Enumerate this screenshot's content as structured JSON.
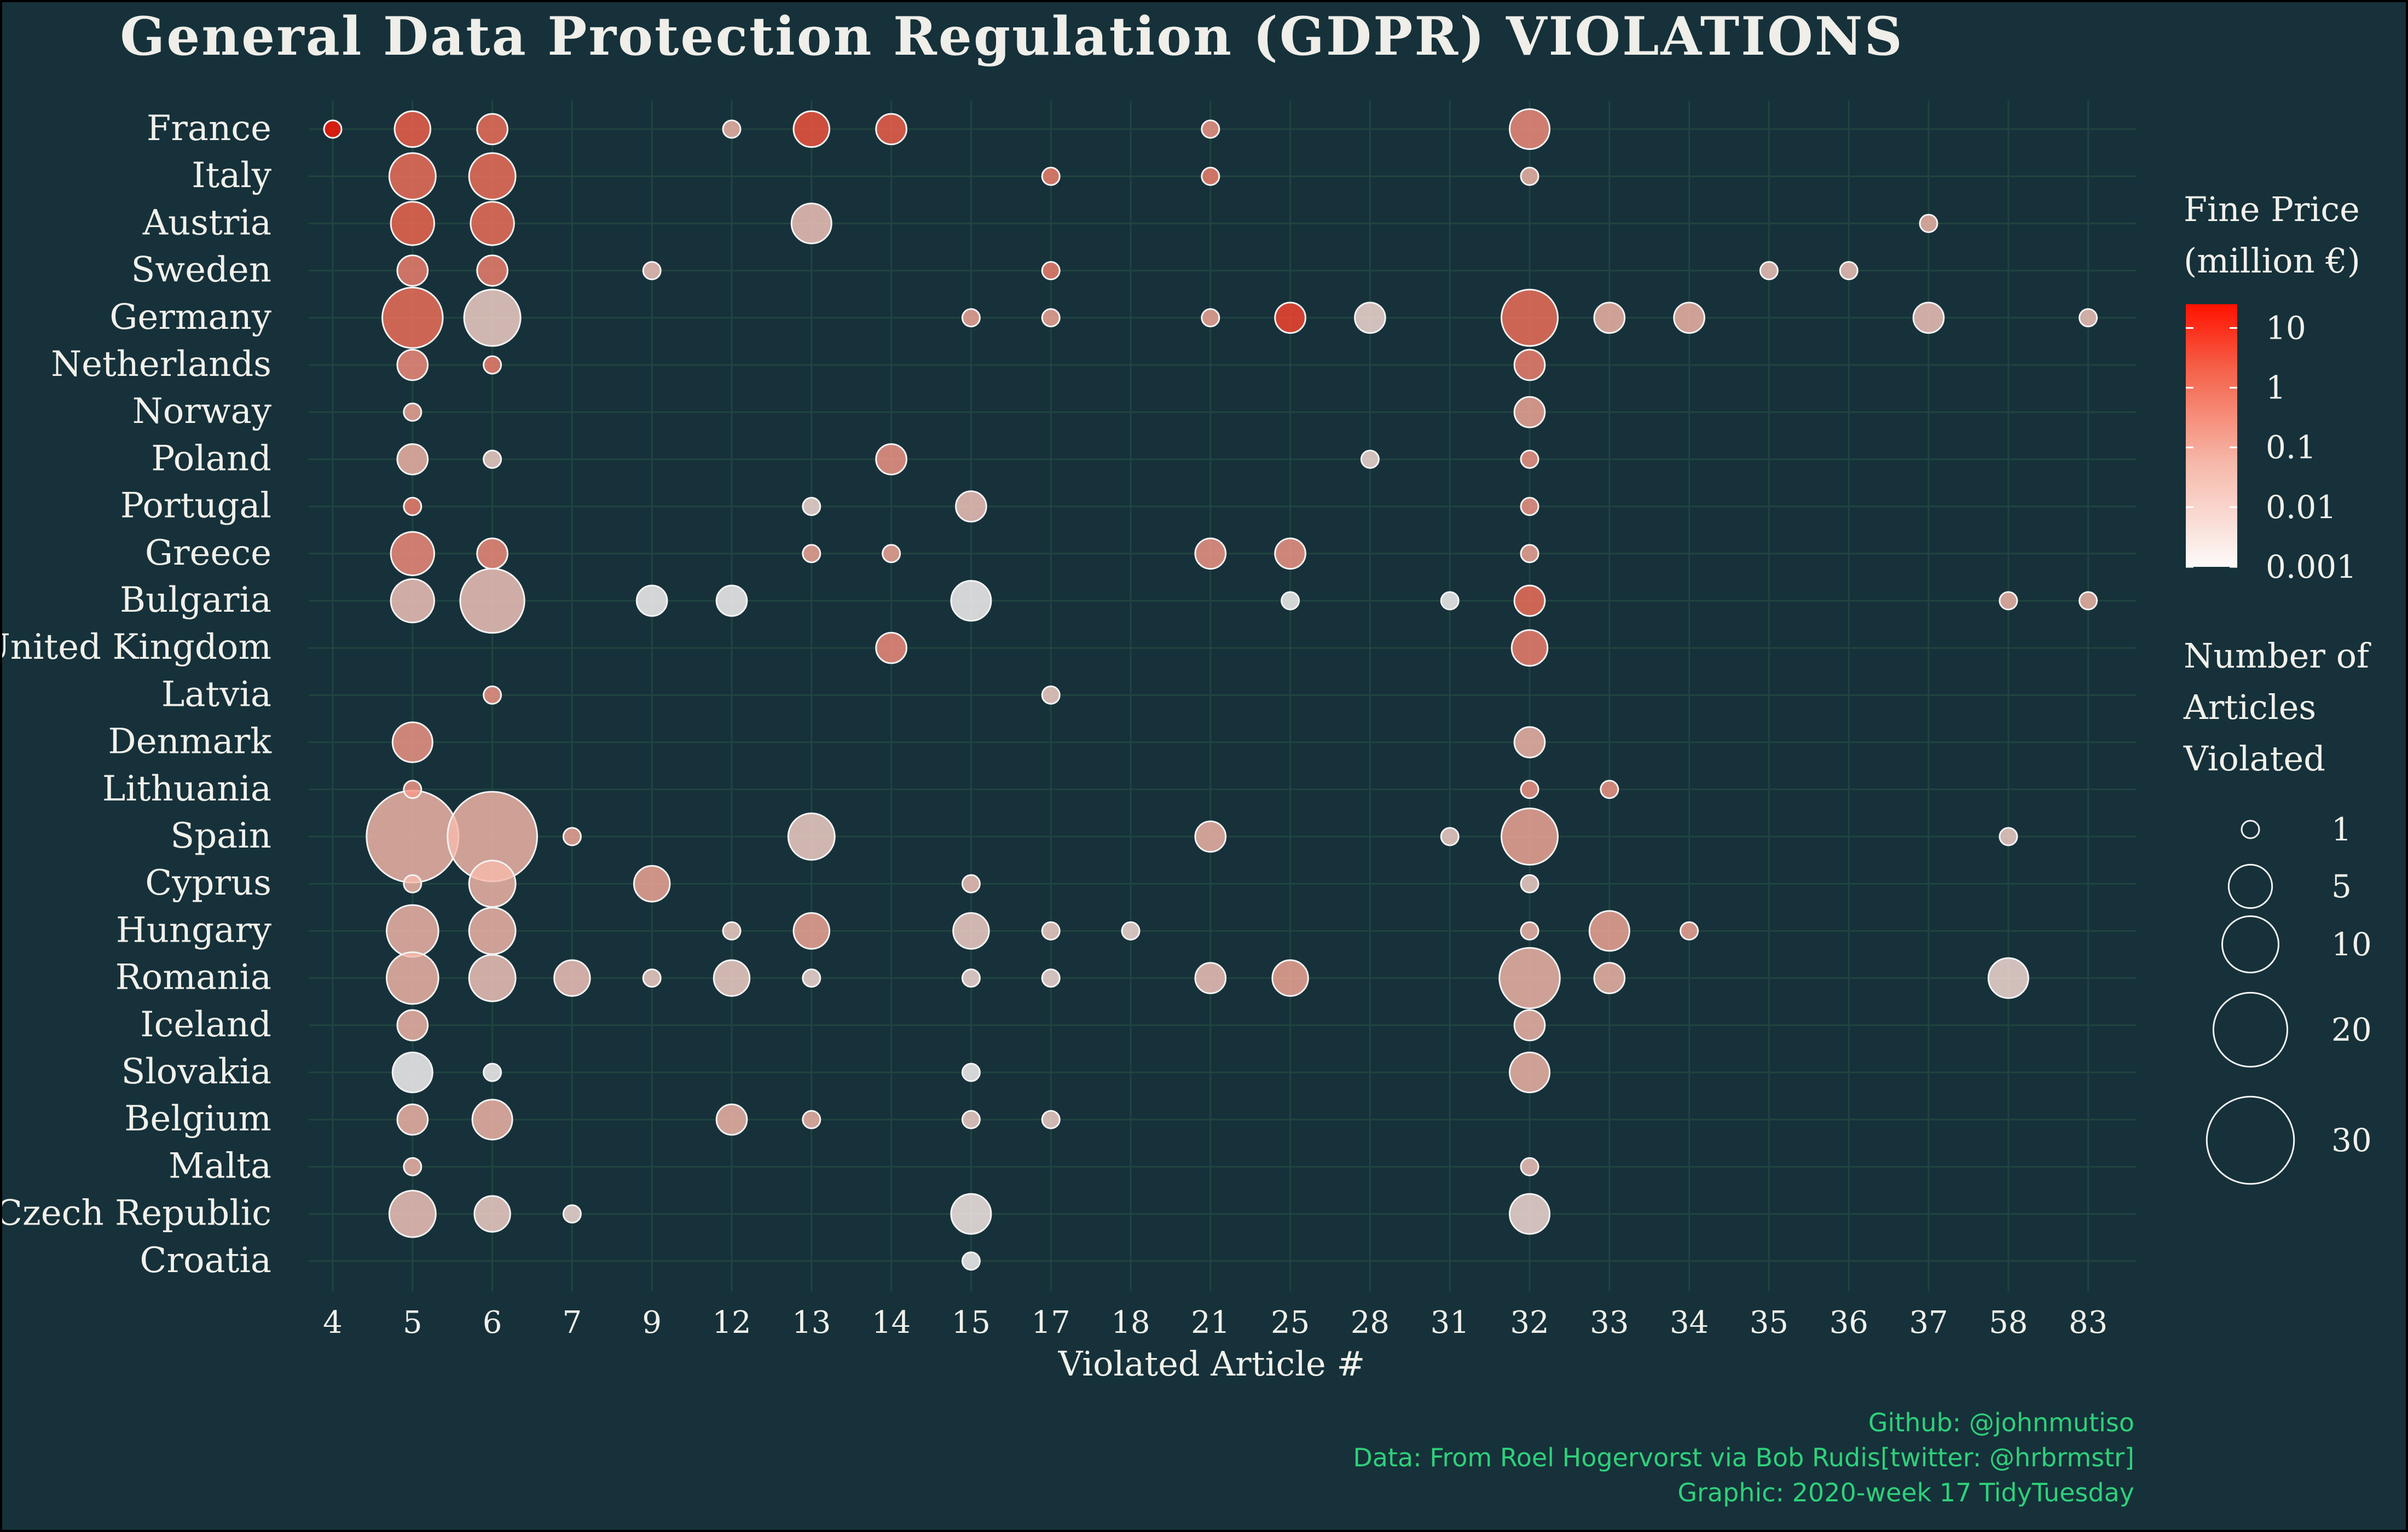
{
  "chart_data": {
    "type": "scatter",
    "title": "General Data Protection Regulation (GDPR) VIOLATIONS",
    "xlabel": "Violated Article #",
    "ylabel": "",
    "articles": [
      "4",
      "5",
      "6",
      "7",
      "9",
      "12",
      "13",
      "14",
      "15",
      "17",
      "18",
      "21",
      "25",
      "28",
      "31",
      "32",
      "33",
      "34",
      "35",
      "36",
      "37",
      "58",
      "83"
    ],
    "countries": [
      "France",
      "Italy",
      "Austria",
      "Sweden",
      "Germany",
      "Netherlands",
      "Norway",
      "Poland",
      "Portugal",
      "Greece",
      "Bulgaria",
      "United Kingdom",
      "Latvia",
      "Denmark",
      "Lithuania",
      "Spain",
      "Cyprus",
      "Hungary",
      "Romania",
      "Iceland",
      "Slovakia",
      "Belgium",
      "Malta",
      "Czech Republic",
      "Croatia"
    ],
    "points": [
      {
        "country": "France",
        "article": "4",
        "count": 1,
        "fine": 20
      },
      {
        "country": "France",
        "article": "5",
        "count": 3,
        "fine": 2
      },
      {
        "country": "France",
        "article": "6",
        "count": 2,
        "fine": 1
      },
      {
        "country": "France",
        "article": "12",
        "count": 1,
        "fine": 0.05
      },
      {
        "country": "France",
        "article": "13",
        "count": 3,
        "fine": 3
      },
      {
        "country": "France",
        "article": "14",
        "count": 2,
        "fine": 2
      },
      {
        "country": "France",
        "article": "21",
        "count": 1,
        "fine": 0.2
      },
      {
        "country": "France",
        "article": "32",
        "count": 4,
        "fine": 0.3
      },
      {
        "country": "Italy",
        "article": "5",
        "count": 6,
        "fine": 1
      },
      {
        "country": "Italy",
        "article": "6",
        "count": 6,
        "fine": 1
      },
      {
        "country": "Italy",
        "article": "17",
        "count": 1,
        "fine": 0.5
      },
      {
        "country": "Italy",
        "article": "21",
        "count": 1,
        "fine": 0.5
      },
      {
        "country": "Italy",
        "article": "32",
        "count": 1,
        "fine": 0.05
      },
      {
        "country": "Austria",
        "article": "5",
        "count": 5,
        "fine": 1.5
      },
      {
        "country": "Austria",
        "article": "6",
        "count": 5,
        "fine": 1
      },
      {
        "country": "Austria",
        "article": "13",
        "count": 4,
        "fine": 0.02
      },
      {
        "country": "Austria",
        "article": "37",
        "count": 1,
        "fine": 0.05
      },
      {
        "country": "Sweden",
        "article": "5",
        "count": 2,
        "fine": 0.5
      },
      {
        "country": "Sweden",
        "article": "6",
        "count": 2,
        "fine": 0.5
      },
      {
        "country": "Sweden",
        "article": "9",
        "count": 1,
        "fine": 0.02
      },
      {
        "country": "Sweden",
        "article": "17",
        "count": 1,
        "fine": 0.5
      },
      {
        "country": "Sweden",
        "article": "35",
        "count": 1,
        "fine": 0.02
      },
      {
        "country": "Sweden",
        "article": "36",
        "count": 1,
        "fine": 0.02
      },
      {
        "country": "Germany",
        "article": "5",
        "count": 12,
        "fine": 1
      },
      {
        "country": "Germany",
        "article": "6",
        "count": 10,
        "fine": 0.01
      },
      {
        "country": "Germany",
        "article": "15",
        "count": 1,
        "fine": 0.1
      },
      {
        "country": "Germany",
        "article": "17",
        "count": 1,
        "fine": 0.1
      },
      {
        "country": "Germany",
        "article": "21",
        "count": 1,
        "fine": 0.1
      },
      {
        "country": "Germany",
        "article": "25",
        "count": 2,
        "fine": 5
      },
      {
        "country": "Germany",
        "article": "28",
        "count": 2,
        "fine": 0.005
      },
      {
        "country": "Germany",
        "article": "32",
        "count": 10,
        "fine": 1
      },
      {
        "country": "Germany",
        "article": "33",
        "count": 2,
        "fine": 0.05
      },
      {
        "country": "Germany",
        "article": "34",
        "count": 2,
        "fine": 0.05
      },
      {
        "country": "Germany",
        "article": "37",
        "count": 2,
        "fine": 0.02
      },
      {
        "country": "Germany",
        "article": "83",
        "count": 1,
        "fine": 0.02
      },
      {
        "country": "Netherlands",
        "article": "5",
        "count": 2,
        "fine": 0.3
      },
      {
        "country": "Netherlands",
        "article": "6",
        "count": 1,
        "fine": 0.5
      },
      {
        "country": "Netherlands",
        "article": "32",
        "count": 2,
        "fine": 0.5
      },
      {
        "country": "Norway",
        "article": "5",
        "count": 1,
        "fine": 0.1
      },
      {
        "country": "Norway",
        "article": "32",
        "count": 2,
        "fine": 0.1
      },
      {
        "country": "Poland",
        "article": "5",
        "count": 2,
        "fine": 0.05
      },
      {
        "country": "Poland",
        "article": "6",
        "count": 1,
        "fine": 0.01
      },
      {
        "country": "Poland",
        "article": "14",
        "count": 2,
        "fine": 0.2
      },
      {
        "country": "Poland",
        "article": "28",
        "count": 1,
        "fine": 0.005
      },
      {
        "country": "Poland",
        "article": "32",
        "count": 1,
        "fine": 0.2
      },
      {
        "country": "Portugal",
        "article": "5",
        "count": 1,
        "fine": 0.5
      },
      {
        "country": "Portugal",
        "article": "13",
        "count": 1,
        "fine": 0.005
      },
      {
        "country": "Portugal",
        "article": "15",
        "count": 2,
        "fine": 0.02
      },
      {
        "country": "Portugal",
        "article": "32",
        "count": 1,
        "fine": 0.2
      },
      {
        "country": "Greece",
        "article": "5",
        "count": 5,
        "fine": 0.3
      },
      {
        "country": "Greece",
        "article": "6",
        "count": 2,
        "fine": 0.3
      },
      {
        "country": "Greece",
        "article": "13",
        "count": 1,
        "fine": 0.1
      },
      {
        "country": "Greece",
        "article": "14",
        "count": 1,
        "fine": 0.1
      },
      {
        "country": "Greece",
        "article": "21",
        "count": 2,
        "fine": 0.2
      },
      {
        "country": "Greece",
        "article": "25",
        "count": 2,
        "fine": 0.2
      },
      {
        "country": "Greece",
        "article": "32",
        "count": 1,
        "fine": 0.1
      },
      {
        "country": "Bulgaria",
        "article": "5",
        "count": 5,
        "fine": 0.02
      },
      {
        "country": "Bulgaria",
        "article": "6",
        "count": 14,
        "fine": 0.02
      },
      {
        "country": "Bulgaria",
        "article": "9",
        "count": 2,
        "fine": 0.001
      },
      {
        "country": "Bulgaria",
        "article": "12",
        "count": 2,
        "fine": 0.001
      },
      {
        "country": "Bulgaria",
        "article": "15",
        "count": 4,
        "fine": 0.001
      },
      {
        "country": "Bulgaria",
        "article": "25",
        "count": 1,
        "fine": 0.001
      },
      {
        "country": "Bulgaria",
        "article": "31",
        "count": 1,
        "fine": 0.001
      },
      {
        "country": "Bulgaria",
        "article": "32",
        "count": 2,
        "fine": 1
      },
      {
        "country": "Bulgaria",
        "article": "58",
        "count": 1,
        "fine": 0.05
      },
      {
        "country": "Bulgaria",
        "article": "83",
        "count": 1,
        "fine": 0.05
      },
      {
        "country": "United Kingdom",
        "article": "14",
        "count": 2,
        "fine": 0.3
      },
      {
        "country": "United Kingdom",
        "article": "32",
        "count": 3,
        "fine": 0.5
      },
      {
        "country": "Latvia",
        "article": "6",
        "count": 1,
        "fine": 0.2
      },
      {
        "country": "Latvia",
        "article": "17",
        "count": 1,
        "fine": 0.01
      },
      {
        "country": "Denmark",
        "article": "5",
        "count": 4,
        "fine": 0.2
      },
      {
        "country": "Denmark",
        "article": "32",
        "count": 2,
        "fine": 0.05
      },
      {
        "country": "Lithuania",
        "article": "5",
        "count": 1,
        "fine": 0.2
      },
      {
        "country": "Lithuania",
        "article": "32",
        "count": 1,
        "fine": 0.2
      },
      {
        "country": "Lithuania",
        "article": "33",
        "count": 1,
        "fine": 0.2
      },
      {
        "country": "Spain",
        "article": "5",
        "count": 34,
        "fine": 0.05
      },
      {
        "country": "Spain",
        "article": "6",
        "count": 32,
        "fine": 0.05
      },
      {
        "country": "Spain",
        "article": "7",
        "count": 1,
        "fine": 0.1
      },
      {
        "country": "Spain",
        "article": "13",
        "count": 6,
        "fine": 0.01
      },
      {
        "country": "Spain",
        "article": "21",
        "count": 2,
        "fine": 0.05
      },
      {
        "country": "Spain",
        "article": "31",
        "count": 1,
        "fine": 0.01
      },
      {
        "country": "Spain",
        "article": "32",
        "count": 10,
        "fine": 0.1
      },
      {
        "country": "Spain",
        "article": "58",
        "count": 1,
        "fine": 0.01
      },
      {
        "country": "Cyprus",
        "article": "5",
        "count": 1,
        "fine": 0.05
      },
      {
        "country": "Cyprus",
        "article": "6",
        "count": 6,
        "fine": 0.05
      },
      {
        "country": "Cyprus",
        "article": "9",
        "count": 3,
        "fine": 0.1
      },
      {
        "country": "Cyprus",
        "article": "15",
        "count": 1,
        "fine": 0.02
      },
      {
        "country": "Cyprus",
        "article": "32",
        "count": 1,
        "fine": 0.01
      },
      {
        "country": "Hungary",
        "article": "5",
        "count": 8,
        "fine": 0.05
      },
      {
        "country": "Hungary",
        "article": "6",
        "count": 6,
        "fine": 0.05
      },
      {
        "country": "Hungary",
        "article": "12",
        "count": 1,
        "fine": 0.01
      },
      {
        "country": "Hungary",
        "article": "13",
        "count": 3,
        "fine": 0.1
      },
      {
        "country": "Hungary",
        "article": "15",
        "count": 3,
        "fine": 0.01
      },
      {
        "country": "Hungary",
        "article": "17",
        "count": 1,
        "fine": 0.01
      },
      {
        "country": "Hungary",
        "article": "18",
        "count": 1,
        "fine": 0.005
      },
      {
        "country": "Hungary",
        "article": "32",
        "count": 1,
        "fine": 0.05
      },
      {
        "country": "Hungary",
        "article": "33",
        "count": 4,
        "fine": 0.1
      },
      {
        "country": "Hungary",
        "article": "34",
        "count": 1,
        "fine": 0.1
      },
      {
        "country": "Romania",
        "article": "5",
        "count": 8,
        "fine": 0.05
      },
      {
        "country": "Romania",
        "article": "6",
        "count": 6,
        "fine": 0.02
      },
      {
        "country": "Romania",
        "article": "7",
        "count": 3,
        "fine": 0.02
      },
      {
        "country": "Romania",
        "article": "9",
        "count": 1,
        "fine": 0.01
      },
      {
        "country": "Romania",
        "article": "12",
        "count": 3,
        "fine": 0.01
      },
      {
        "country": "Romania",
        "article": "13",
        "count": 1,
        "fine": 0.005
      },
      {
        "country": "Romania",
        "article": "15",
        "count": 1,
        "fine": 0.005
      },
      {
        "country": "Romania",
        "article": "17",
        "count": 1,
        "fine": 0.005
      },
      {
        "country": "Romania",
        "article": "21",
        "count": 2,
        "fine": 0.02
      },
      {
        "country": "Romania",
        "article": "25",
        "count": 3,
        "fine": 0.1
      },
      {
        "country": "Romania",
        "article": "32",
        "count": 12,
        "fine": 0.05
      },
      {
        "country": "Romania",
        "article": "33",
        "count": 2,
        "fine": 0.05
      },
      {
        "country": "Romania",
        "article": "58",
        "count": 4,
        "fine": 0.005
      },
      {
        "country": "Iceland",
        "article": "5",
        "count": 2,
        "fine": 0.05
      },
      {
        "country": "Iceland",
        "article": "32",
        "count": 2,
        "fine": 0.05
      },
      {
        "country": "Slovakia",
        "article": "5",
        "count": 4,
        "fine": 0.001
      },
      {
        "country": "Slovakia",
        "article": "6",
        "count": 1,
        "fine": 0.001
      },
      {
        "country": "Slovakia",
        "article": "15",
        "count": 1,
        "fine": 0.001
      },
      {
        "country": "Slovakia",
        "article": "32",
        "count": 4,
        "fine": 0.05
      },
      {
        "country": "Belgium",
        "article": "5",
        "count": 2,
        "fine": 0.05
      },
      {
        "country": "Belgium",
        "article": "6",
        "count": 4,
        "fine": 0.05
      },
      {
        "country": "Belgium",
        "article": "12",
        "count": 2,
        "fine": 0.05
      },
      {
        "country": "Belgium",
        "article": "13",
        "count": 1,
        "fine": 0.05
      },
      {
        "country": "Belgium",
        "article": "15",
        "count": 1,
        "fine": 0.01
      },
      {
        "country": "Belgium",
        "article": "17",
        "count": 1,
        "fine": 0.01
      },
      {
        "country": "Malta",
        "article": "5",
        "count": 1,
        "fine": 0.05
      },
      {
        "country": "Malta",
        "article": "32",
        "count": 1,
        "fine": 0.02
      },
      {
        "country": "Czech Republic",
        "article": "5",
        "count": 6,
        "fine": 0.02
      },
      {
        "country": "Czech Republic",
        "article": "6",
        "count": 3,
        "fine": 0.01
      },
      {
        "country": "Czech Republic",
        "article": "7",
        "count": 1,
        "fine": 0.005
      },
      {
        "country": "Czech Republic",
        "article": "15",
        "count": 4,
        "fine": 0.002
      },
      {
        "country": "Czech Republic",
        "article": "32",
        "count": 4,
        "fine": 0.005
      },
      {
        "country": "Croatia",
        "article": "15",
        "count": 1,
        "fine": 0.001
      }
    ],
    "legend": {
      "color_title_line1": "Fine Price",
      "color_title_line2": "(million €)",
      "color_ticks": [
        "10",
        "1",
        "0.1",
        "0.01",
        "0.001"
      ],
      "color_tick_values": [
        10,
        1,
        0.1,
        0.01,
        0.001
      ],
      "color_range": [
        0.001,
        25
      ],
      "color_low": "#fdfaf9",
      "color_high": "#ff1200",
      "size_title_line1": "Number of",
      "size_title_line2": "Articles",
      "size_title_line3": "Violated",
      "size_ticks": [
        "1",
        "5",
        "10",
        "20",
        "30"
      ],
      "size_tick_values": [
        1,
        5,
        10,
        20,
        30
      ],
      "placement": "right"
    },
    "grid": true
  },
  "caption": {
    "line1": "Github: @johnmutiso",
    "line2": "Data: From Roel Hogervorst via Bob Rudis[twitter: @hrbrmstr]",
    "line3": "Graphic: 2020-week 17 TidyTuesday"
  },
  "colors": {
    "background": "#16313a",
    "grid": "#20443f",
    "text": "#f1f0ea",
    "caption": "#2fd07a"
  }
}
